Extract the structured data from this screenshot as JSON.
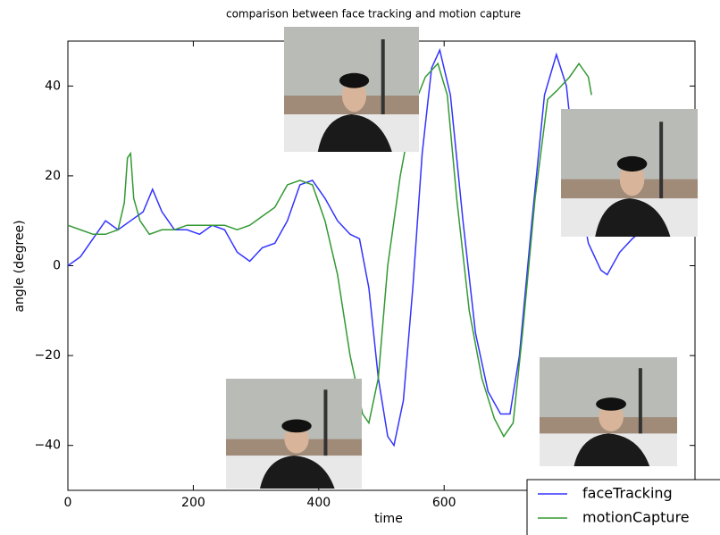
{
  "chart_data": {
    "type": "line",
    "title": "comparison between face tracking and motion capture",
    "x_label": "time",
    "y_label": "angle (degree)",
    "xlim": [
      0,
      1000
    ],
    "ylim": [
      -50,
      50
    ],
    "xticks": [
      0,
      200,
      400,
      600
    ],
    "yticks": [
      -40,
      -20,
      0,
      20,
      40
    ],
    "legend": "lower right",
    "series": [
      {
        "name": "faceTracking",
        "color": "#3333ff",
        "x": [
          0,
          20,
          40,
          60,
          80,
          100,
          120,
          135,
          150,
          170,
          190,
          210,
          230,
          250,
          270,
          290,
          310,
          330,
          350,
          370,
          390,
          410,
          430,
          450,
          465,
          480,
          495,
          510,
          520,
          535,
          550,
          565,
          580,
          593,
          610,
          630,
          650,
          670,
          690,
          705,
          720,
          740,
          760,
          779,
          795,
          810,
          830,
          850,
          860,
          880,
          900,
          917
        ],
        "values": [
          0,
          2,
          6,
          10,
          8,
          10,
          12,
          17,
          12,
          8,
          8,
          7,
          9,
          8,
          3,
          1,
          4,
          5,
          10,
          18,
          19,
          15,
          10,
          7,
          6,
          -5,
          -25,
          -38,
          -40,
          -30,
          -5,
          25,
          44,
          48,
          38,
          10,
          -15,
          -28,
          -33,
          -33,
          -20,
          10,
          38,
          47,
          40,
          20,
          5,
          -1,
          -2,
          3,
          6,
          8
        ]
      },
      {
        "name": "motionCapture",
        "color": "#339933",
        "x": [
          0,
          20,
          40,
          60,
          80,
          90,
          95,
          100,
          105,
          115,
          130,
          150,
          170,
          190,
          210,
          230,
          250,
          270,
          290,
          310,
          330,
          350,
          370,
          390,
          410,
          430,
          450,
          470,
          480,
          495,
          510,
          530,
          550,
          570,
          590,
          605,
          620,
          640,
          660,
          680,
          695,
          710,
          725,
          745,
          765,
          780,
          800,
          815,
          830,
          835
        ],
        "values": [
          9,
          8,
          7,
          7,
          8,
          14,
          24,
          25,
          15,
          10,
          7,
          8,
          8,
          9,
          9,
          9,
          9,
          8,
          9,
          11,
          13,
          18,
          19,
          18,
          10,
          -2,
          -20,
          -33,
          -35,
          -25,
          0,
          20,
          35,
          42,
          45,
          38,
          15,
          -10,
          -25,
          -34,
          -38,
          -35,
          -15,
          15,
          37,
          39,
          42,
          45,
          42,
          38
        ]
      }
    ]
  }
}
